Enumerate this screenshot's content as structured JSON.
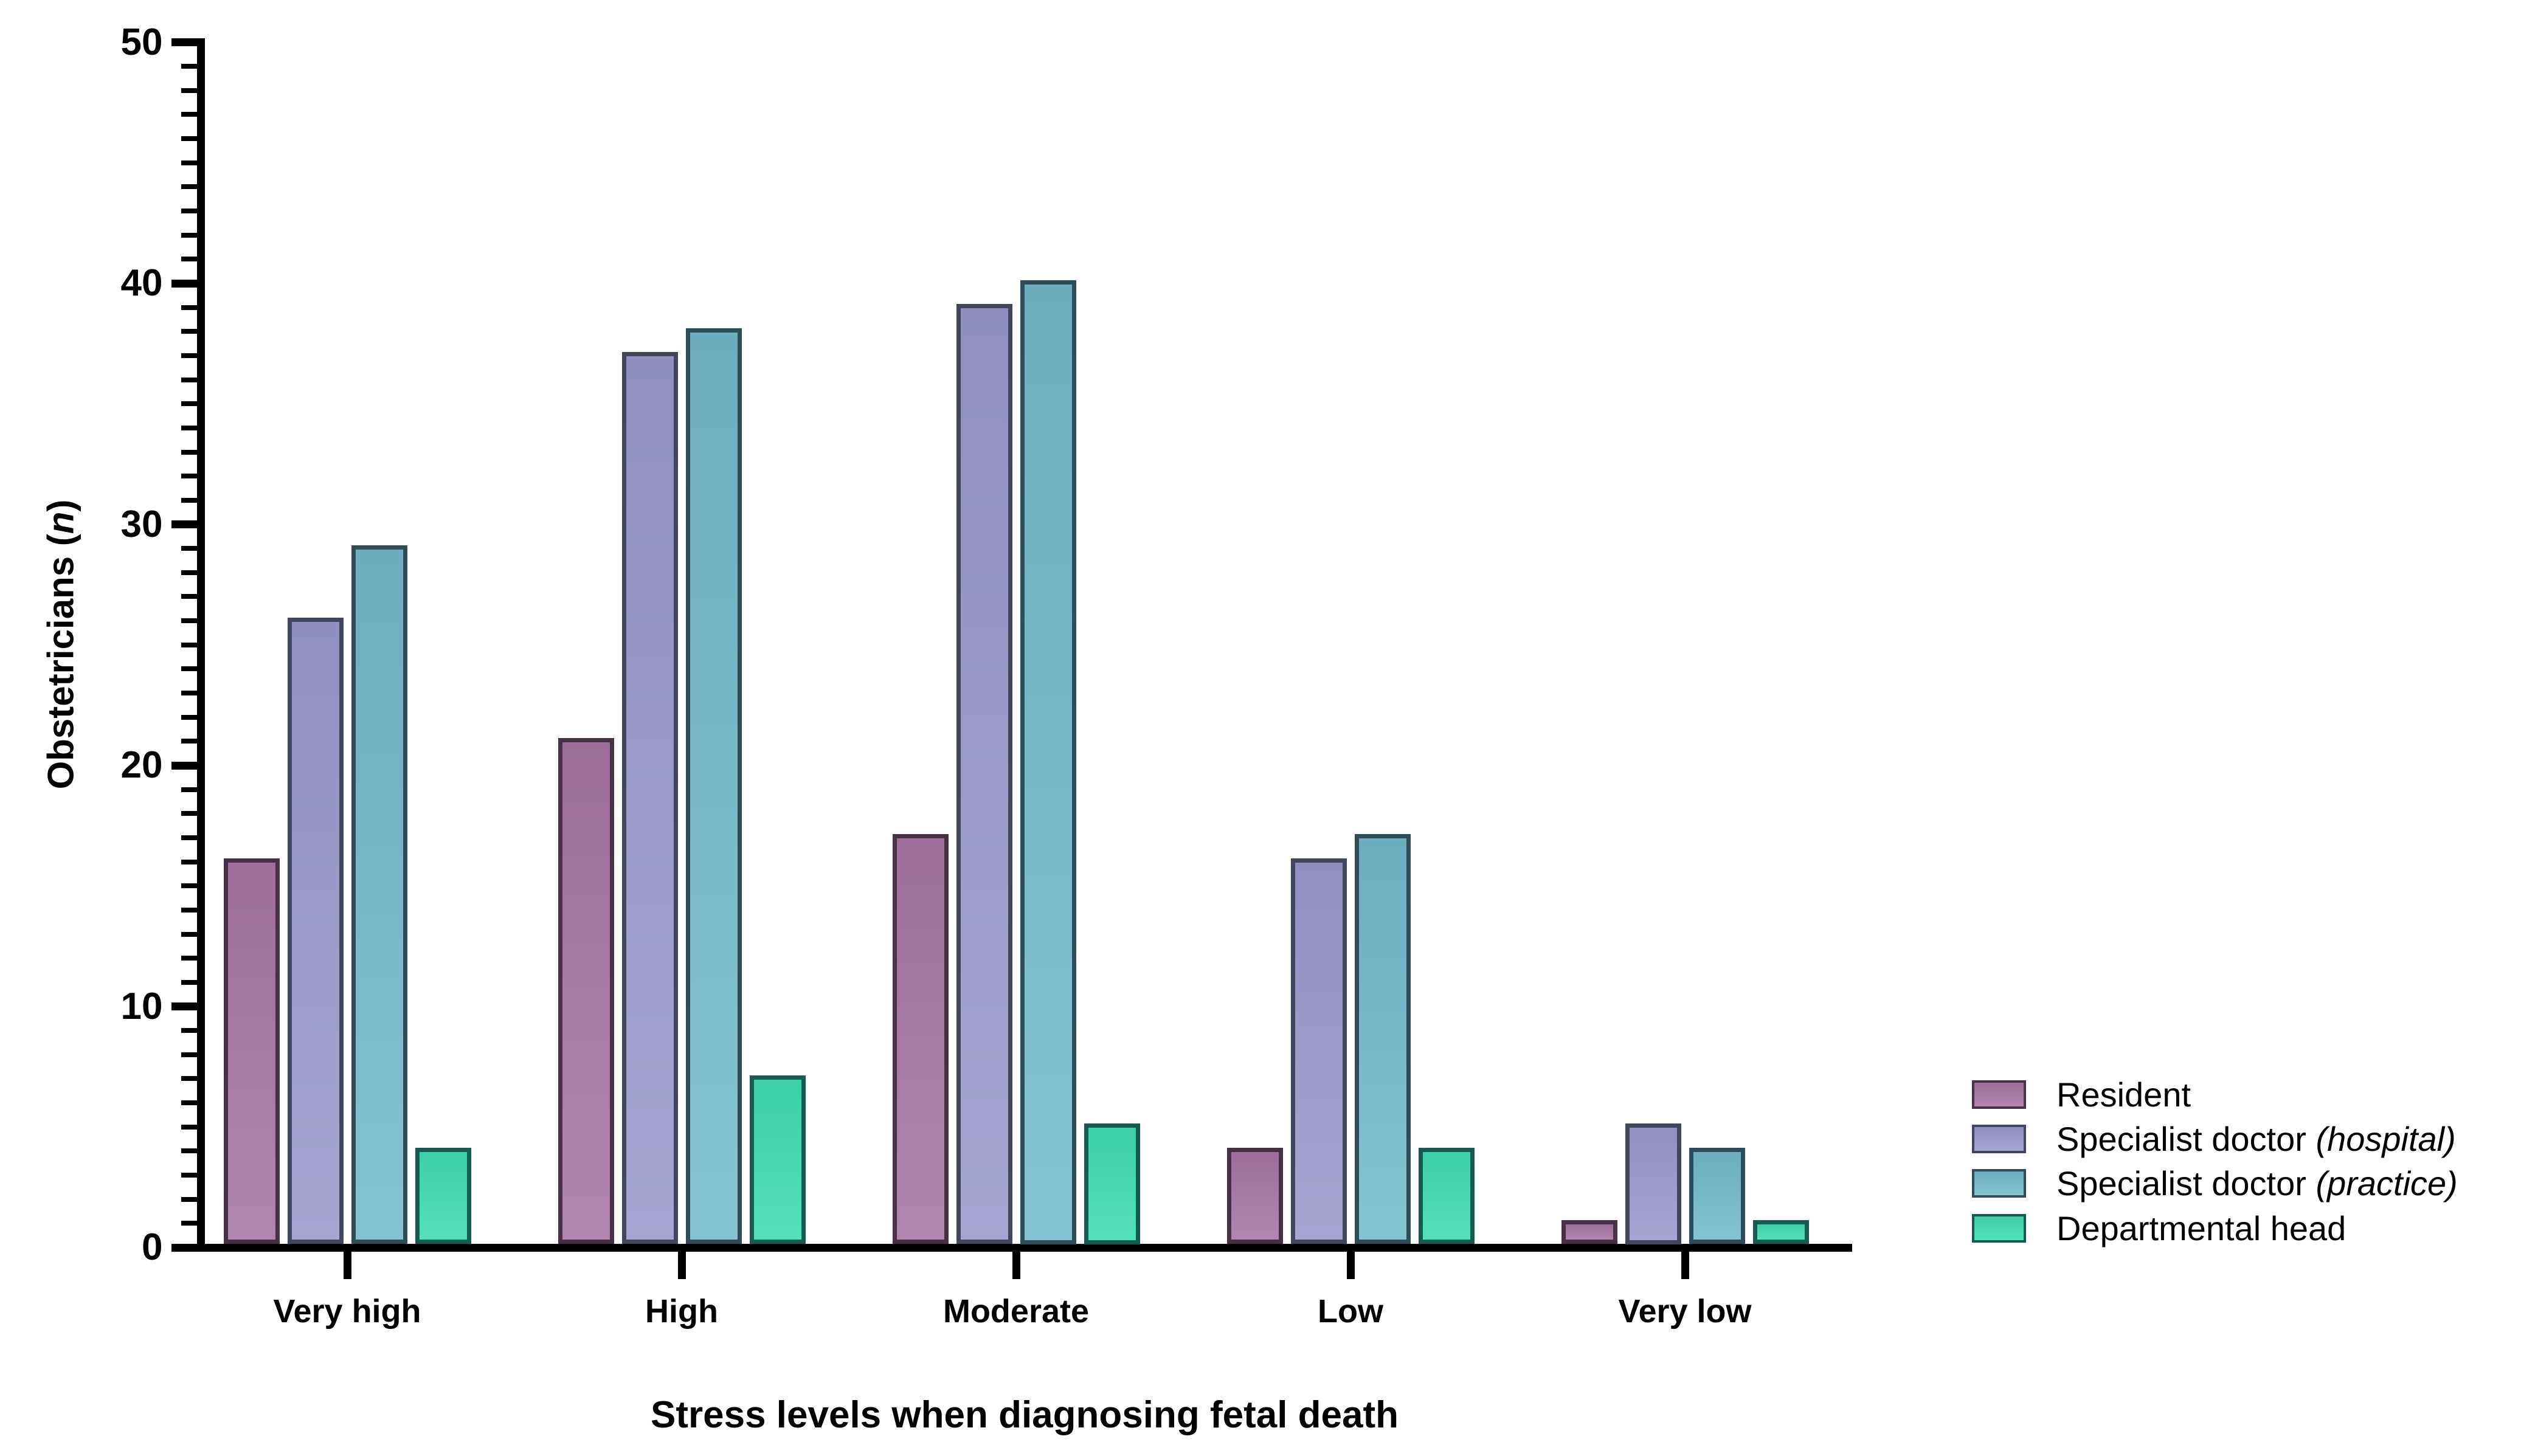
{
  "chart_data": {
    "type": "bar",
    "title": "",
    "xlabel": "Stress levels when diagnosing fetal death",
    "ylabel": "Obstetricians (n)",
    "ylabel_prefix": "Obstetricians (",
    "ylabel_italic": "n",
    "ylabel_suffix": ")",
    "categories": [
      "Very high",
      "High",
      "Moderate",
      "Low",
      "Very low"
    ],
    "series": [
      {
        "name": "Resident",
        "name_main": "Resident",
        "name_italic": "",
        "values": [
          16,
          21,
          17,
          4,
          1
        ],
        "fill_top": "#9e6d9b",
        "fill_bottom": "#b186ae",
        "stroke": "#483145"
      },
      {
        "name": "Specialist doctor (hospital)",
        "name_main": "Specialist doctor ",
        "name_italic": "(hospital)",
        "values": [
          26,
          37,
          39,
          16,
          5
        ],
        "fill_top": "#908fc0",
        "fill_bottom": "#a6a5d2",
        "stroke": "#41465e"
      },
      {
        "name": "Specialist doctor (practice)",
        "name_main": "Specialist doctor ",
        "name_italic": "(practice)",
        "values": [
          29,
          38,
          40,
          17,
          4
        ],
        "fill_top": "#6cadc0",
        "fill_bottom": "#85c3d2",
        "stroke": "#2e4d58"
      },
      {
        "name": "Departmental head",
        "name_main": "Departmental head",
        "name_italic": "",
        "values": [
          4,
          7,
          5,
          4,
          1
        ],
        "fill_top": "#3ccfa7",
        "fill_bottom": "#55e0ba",
        "stroke": "#145c51"
      }
    ],
    "ylim": [
      0,
      50
    ],
    "yticks": [
      0,
      10,
      20,
      30,
      40,
      50
    ],
    "ytick_minor_step": 1,
    "grid": false,
    "legend_position": "right-bottom",
    "axis_color": "#000000",
    "background_color": "#ffffff"
  }
}
